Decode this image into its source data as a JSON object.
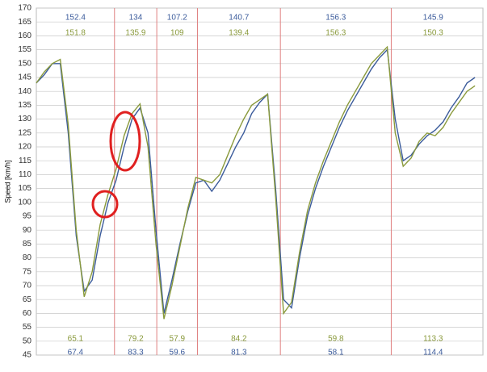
{
  "chart_data": {
    "type": "line",
    "y_label": "Speed [km/h]",
    "ylim": [
      45,
      170
    ],
    "yticks": [
      45,
      50,
      55,
      60,
      65,
      70,
      75,
      80,
      85,
      90,
      95,
      100,
      105,
      110,
      115,
      120,
      125,
      130,
      135,
      140,
      145,
      150,
      155,
      160,
      165,
      170
    ],
    "grid": true,
    "categories": [
      null,
      null,
      null,
      null,
      null,
      null,
      null,
      null,
      null,
      null,
      null,
      null,
      null,
      null,
      null,
      null,
      null,
      null,
      null,
      null,
      null,
      null,
      null,
      null,
      null,
      null,
      null,
      null,
      null,
      null,
      null,
      null,
      null,
      null,
      null,
      null,
      null,
      null,
      null,
      null,
      null,
      null,
      null,
      null,
      null,
      null,
      null,
      null,
      null,
      null,
      null,
      null,
      null,
      null,
      null,
      null
    ],
    "dividers": [
      9.8,
      15.1,
      20.2,
      30.6,
      44.5
    ],
    "divider_color": "#e08080",
    "series": [
      {
        "color": "#3b5b9b",
        "values": [
          143,
          146,
          150,
          150,
          125,
          88,
          68,
          72,
          88,
          100,
          108,
          120,
          130,
          134,
          125,
          90,
          60,
          72,
          85,
          97,
          107,
          108,
          104,
          108,
          114,
          120,
          125,
          132,
          136,
          139,
          105,
          65,
          62,
          80,
          95,
          105,
          113,
          120,
          127,
          133,
          138,
          143,
          148,
          152,
          155,
          130,
          115,
          117,
          121,
          124,
          126,
          129,
          134,
          138,
          143,
          145
        ],
        "max_values": [
          152.4,
          134.0,
          107.2,
          140.7,
          156.3,
          145.9
        ],
        "min_values": [
          67.4,
          83.3,
          59.6,
          81.3,
          58.1,
          114.4
        ]
      },
      {
        "color": "#8a9a3c",
        "values": [
          143,
          147,
          150,
          151.5,
          128,
          90,
          66,
          75,
          92,
          103,
          112,
          124,
          132,
          135.5,
          120,
          85,
          58,
          70,
          84,
          98,
          109,
          108,
          107,
          110,
          117,
          124,
          130,
          135,
          137,
          139,
          102,
          60,
          64,
          82,
          97,
          107,
          115,
          122,
          129,
          135,
          140,
          145,
          150,
          153,
          156,
          125,
          113,
          116,
          122,
          125,
          124,
          127,
          132,
          136,
          140,
          142
        ],
        "max_values": [
          151.8,
          135.9,
          109.0,
          139.4,
          156.3,
          150.3
        ],
        "min_values": [
          65.1,
          79.2,
          57.9,
          84.2,
          59.8,
          113.3
        ]
      }
    ]
  }
}
